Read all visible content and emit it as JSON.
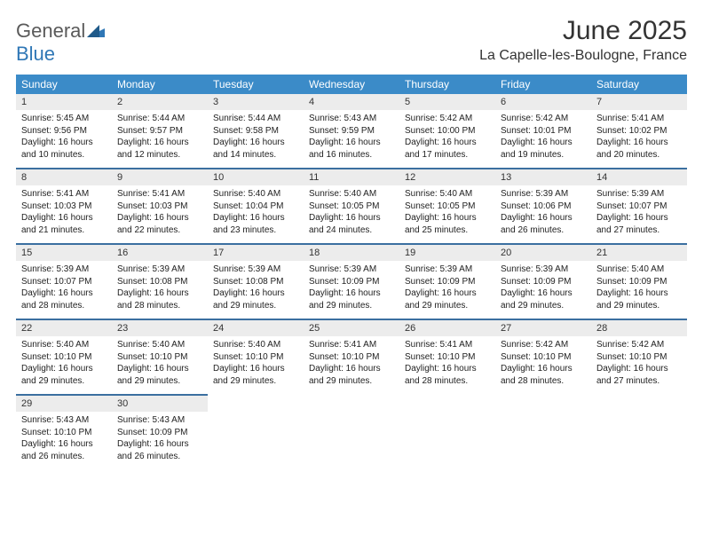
{
  "logo": {
    "textA": "General",
    "textB": "Blue"
  },
  "title": "June 2025",
  "location": "La Capelle-les-Boulogne, France",
  "colors": {
    "headerBg": "#3b8bc8",
    "headerText": "#ffffff",
    "rowDivider": "#3b6fa0",
    "dayNumBg": "#ececec",
    "logoBlue": "#2f77b6"
  },
  "dayHeaders": [
    "Sunday",
    "Monday",
    "Tuesday",
    "Wednesday",
    "Thursday",
    "Friday",
    "Saturday"
  ],
  "weeks": [
    [
      {
        "n": "1",
        "sr": "Sunrise: 5:45 AM",
        "ss": "Sunset: 9:56 PM",
        "d1": "Daylight: 16 hours",
        "d2": "and 10 minutes."
      },
      {
        "n": "2",
        "sr": "Sunrise: 5:44 AM",
        "ss": "Sunset: 9:57 PM",
        "d1": "Daylight: 16 hours",
        "d2": "and 12 minutes."
      },
      {
        "n": "3",
        "sr": "Sunrise: 5:44 AM",
        "ss": "Sunset: 9:58 PM",
        "d1": "Daylight: 16 hours",
        "d2": "and 14 minutes."
      },
      {
        "n": "4",
        "sr": "Sunrise: 5:43 AM",
        "ss": "Sunset: 9:59 PM",
        "d1": "Daylight: 16 hours",
        "d2": "and 16 minutes."
      },
      {
        "n": "5",
        "sr": "Sunrise: 5:42 AM",
        "ss": "Sunset: 10:00 PM",
        "d1": "Daylight: 16 hours",
        "d2": "and 17 minutes."
      },
      {
        "n": "6",
        "sr": "Sunrise: 5:42 AM",
        "ss": "Sunset: 10:01 PM",
        "d1": "Daylight: 16 hours",
        "d2": "and 19 minutes."
      },
      {
        "n": "7",
        "sr": "Sunrise: 5:41 AM",
        "ss": "Sunset: 10:02 PM",
        "d1": "Daylight: 16 hours",
        "d2": "and 20 minutes."
      }
    ],
    [
      {
        "n": "8",
        "sr": "Sunrise: 5:41 AM",
        "ss": "Sunset: 10:03 PM",
        "d1": "Daylight: 16 hours",
        "d2": "and 21 minutes."
      },
      {
        "n": "9",
        "sr": "Sunrise: 5:41 AM",
        "ss": "Sunset: 10:03 PM",
        "d1": "Daylight: 16 hours",
        "d2": "and 22 minutes."
      },
      {
        "n": "10",
        "sr": "Sunrise: 5:40 AM",
        "ss": "Sunset: 10:04 PM",
        "d1": "Daylight: 16 hours",
        "d2": "and 23 minutes."
      },
      {
        "n": "11",
        "sr": "Sunrise: 5:40 AM",
        "ss": "Sunset: 10:05 PM",
        "d1": "Daylight: 16 hours",
        "d2": "and 24 minutes."
      },
      {
        "n": "12",
        "sr": "Sunrise: 5:40 AM",
        "ss": "Sunset: 10:05 PM",
        "d1": "Daylight: 16 hours",
        "d2": "and 25 minutes."
      },
      {
        "n": "13",
        "sr": "Sunrise: 5:39 AM",
        "ss": "Sunset: 10:06 PM",
        "d1": "Daylight: 16 hours",
        "d2": "and 26 minutes."
      },
      {
        "n": "14",
        "sr": "Sunrise: 5:39 AM",
        "ss": "Sunset: 10:07 PM",
        "d1": "Daylight: 16 hours",
        "d2": "and 27 minutes."
      }
    ],
    [
      {
        "n": "15",
        "sr": "Sunrise: 5:39 AM",
        "ss": "Sunset: 10:07 PM",
        "d1": "Daylight: 16 hours",
        "d2": "and 28 minutes."
      },
      {
        "n": "16",
        "sr": "Sunrise: 5:39 AM",
        "ss": "Sunset: 10:08 PM",
        "d1": "Daylight: 16 hours",
        "d2": "and 28 minutes."
      },
      {
        "n": "17",
        "sr": "Sunrise: 5:39 AM",
        "ss": "Sunset: 10:08 PM",
        "d1": "Daylight: 16 hours",
        "d2": "and 29 minutes."
      },
      {
        "n": "18",
        "sr": "Sunrise: 5:39 AM",
        "ss": "Sunset: 10:09 PM",
        "d1": "Daylight: 16 hours",
        "d2": "and 29 minutes."
      },
      {
        "n": "19",
        "sr": "Sunrise: 5:39 AM",
        "ss": "Sunset: 10:09 PM",
        "d1": "Daylight: 16 hours",
        "d2": "and 29 minutes."
      },
      {
        "n": "20",
        "sr": "Sunrise: 5:39 AM",
        "ss": "Sunset: 10:09 PM",
        "d1": "Daylight: 16 hours",
        "d2": "and 29 minutes."
      },
      {
        "n": "21",
        "sr": "Sunrise: 5:40 AM",
        "ss": "Sunset: 10:09 PM",
        "d1": "Daylight: 16 hours",
        "d2": "and 29 minutes."
      }
    ],
    [
      {
        "n": "22",
        "sr": "Sunrise: 5:40 AM",
        "ss": "Sunset: 10:10 PM",
        "d1": "Daylight: 16 hours",
        "d2": "and 29 minutes."
      },
      {
        "n": "23",
        "sr": "Sunrise: 5:40 AM",
        "ss": "Sunset: 10:10 PM",
        "d1": "Daylight: 16 hours",
        "d2": "and 29 minutes."
      },
      {
        "n": "24",
        "sr": "Sunrise: 5:40 AM",
        "ss": "Sunset: 10:10 PM",
        "d1": "Daylight: 16 hours",
        "d2": "and 29 minutes."
      },
      {
        "n": "25",
        "sr": "Sunrise: 5:41 AM",
        "ss": "Sunset: 10:10 PM",
        "d1": "Daylight: 16 hours",
        "d2": "and 29 minutes."
      },
      {
        "n": "26",
        "sr": "Sunrise: 5:41 AM",
        "ss": "Sunset: 10:10 PM",
        "d1": "Daylight: 16 hours",
        "d2": "and 28 minutes."
      },
      {
        "n": "27",
        "sr": "Sunrise: 5:42 AM",
        "ss": "Sunset: 10:10 PM",
        "d1": "Daylight: 16 hours",
        "d2": "and 28 minutes."
      },
      {
        "n": "28",
        "sr": "Sunrise: 5:42 AM",
        "ss": "Sunset: 10:10 PM",
        "d1": "Daylight: 16 hours",
        "d2": "and 27 minutes."
      }
    ],
    [
      {
        "n": "29",
        "sr": "Sunrise: 5:43 AM",
        "ss": "Sunset: 10:10 PM",
        "d1": "Daylight: 16 hours",
        "d2": "and 26 minutes."
      },
      {
        "n": "30",
        "sr": "Sunrise: 5:43 AM",
        "ss": "Sunset: 10:09 PM",
        "d1": "Daylight: 16 hours",
        "d2": "and 26 minutes."
      },
      null,
      null,
      null,
      null,
      null
    ]
  ]
}
